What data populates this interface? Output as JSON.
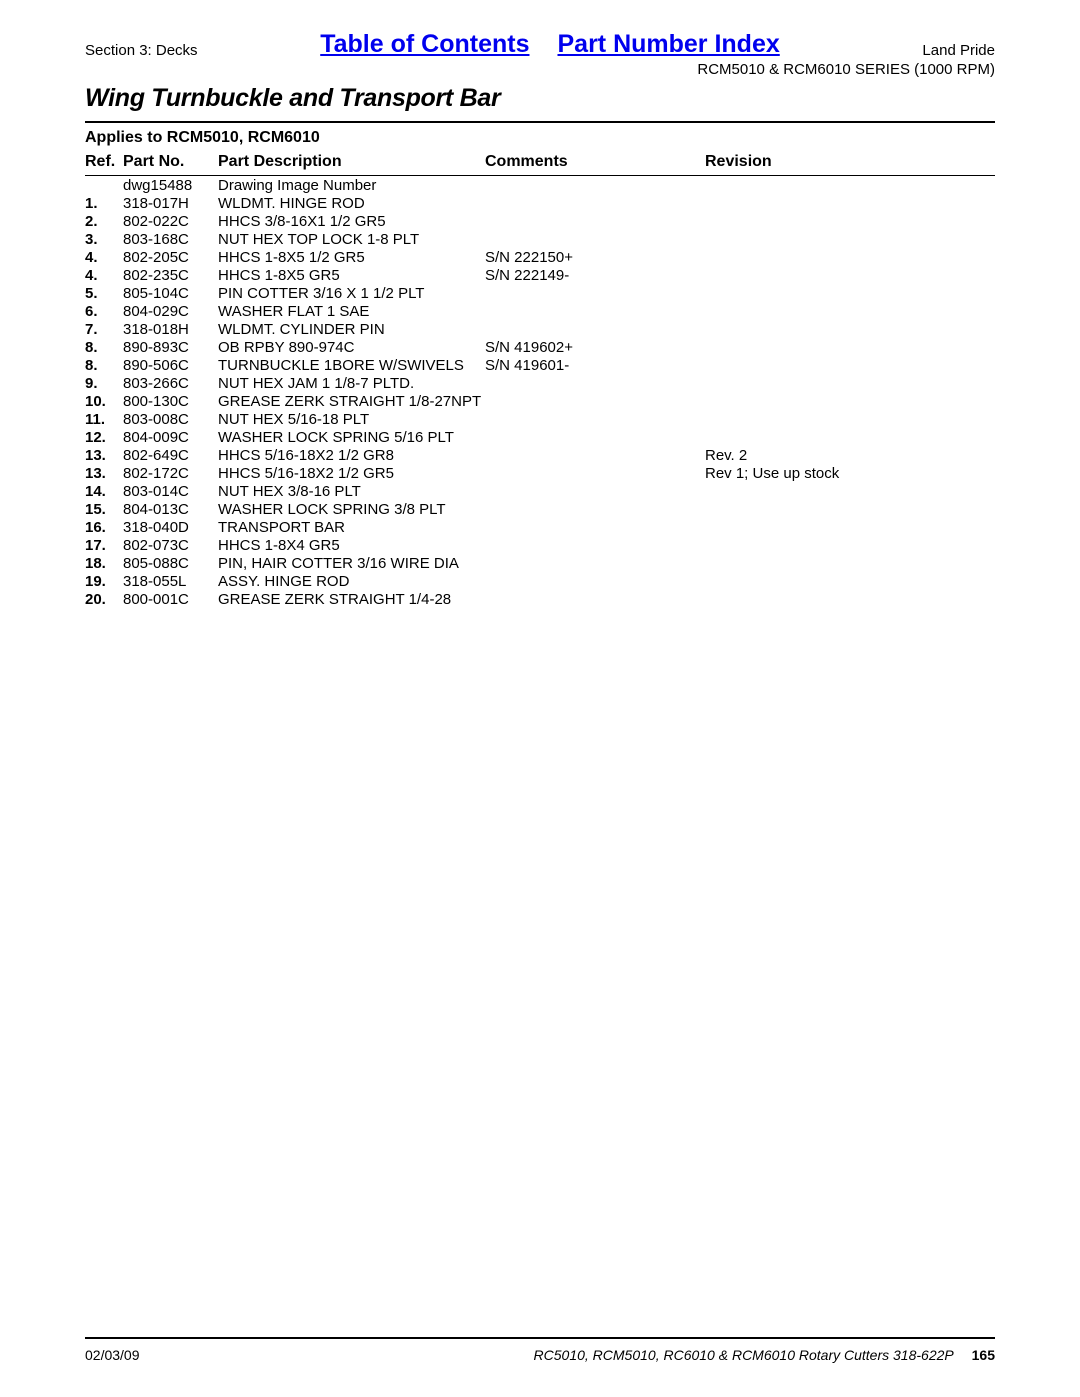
{
  "header": {
    "section_label": "Section 3: Decks",
    "brand": "Land Pride",
    "series": "RCM5010 & RCM6010 SERIES (1000 RPM)"
  },
  "toc_links": {
    "toc": "Table of Contents",
    "pni": "Part Number Index"
  },
  "title": "Wing Turnbuckle and Transport Bar",
  "applies_to": "Applies to RCM5010, RCM6010",
  "table": {
    "columns": {
      "ref": "Ref.",
      "part_no": "Part No.",
      "description": "Part Description",
      "comments": "Comments",
      "revision": "Revision"
    },
    "rows": [
      {
        "ref": "",
        "part": "dwg15488",
        "desc": "Drawing Image Number",
        "comments": "",
        "rev": ""
      },
      {
        "ref": "1.",
        "part": "318-017H",
        "desc": "WLDMT. HINGE ROD",
        "comments": "",
        "rev": ""
      },
      {
        "ref": "2.",
        "part": "802-022C",
        "desc": "HHCS 3/8-16X1 1/2 GR5",
        "comments": "",
        "rev": ""
      },
      {
        "ref": "3.",
        "part": "803-168C",
        "desc": "NUT HEX TOP LOCK 1-8 PLT",
        "comments": "",
        "rev": ""
      },
      {
        "ref": "4.",
        "part": "802-205C",
        "desc": "HHCS 1-8X5 1/2 GR5",
        "comments": "S/N 222150+",
        "rev": ""
      },
      {
        "ref": "4.",
        "part": "802-235C",
        "desc": "HHCS 1-8X5 GR5",
        "comments": "S/N 222149-",
        "rev": ""
      },
      {
        "ref": "5.",
        "part": "805-104C",
        "desc": "PIN COTTER 3/16 X 1 1/2 PLT",
        "comments": "",
        "rev": ""
      },
      {
        "ref": "6.",
        "part": "804-029C",
        "desc": "WASHER FLAT 1 SAE",
        "comments": "",
        "rev": ""
      },
      {
        "ref": "7.",
        "part": "318-018H",
        "desc": "WLDMT. CYLINDER PIN",
        "comments": "",
        "rev": ""
      },
      {
        "ref": "8.",
        "part": "890-893C",
        "desc": "OB RPBY 890-974C",
        "comments": "S/N 419602+",
        "rev": ""
      },
      {
        "ref": "8.",
        "part": "890-506C",
        "desc": "TURNBUCKLE 1BORE W/SWIVELS",
        "comments": "S/N 419601-",
        "rev": ""
      },
      {
        "ref": "9.",
        "part": "803-266C",
        "desc": "NUT HEX JAM 1 1/8-7 PLTD.",
        "comments": "",
        "rev": ""
      },
      {
        "ref": "10.",
        "part": "800-130C",
        "desc": "GREASE ZERK STRAIGHT 1/8-27NPT",
        "comments": "",
        "rev": ""
      },
      {
        "ref": "11.",
        "part": "803-008C",
        "desc": "NUT HEX 5/16-18 PLT",
        "comments": "",
        "rev": ""
      },
      {
        "ref": "12.",
        "part": "804-009C",
        "desc": "WASHER LOCK SPRING 5/16 PLT",
        "comments": "",
        "rev": ""
      },
      {
        "ref": "13.",
        "part": "802-649C",
        "desc": "HHCS 5/16-18X2 1/2 GR8",
        "comments": "",
        "rev": "Rev. 2"
      },
      {
        "ref": "13.",
        "part": "802-172C",
        "desc": "HHCS 5/16-18X2 1/2 GR5",
        "comments": "",
        "rev": "Rev 1; Use up stock"
      },
      {
        "ref": "14.",
        "part": "803-014C",
        "desc": "NUT HEX 3/8-16 PLT",
        "comments": "",
        "rev": ""
      },
      {
        "ref": "15.",
        "part": "804-013C",
        "desc": "WASHER LOCK SPRING 3/8 PLT",
        "comments": "",
        "rev": ""
      },
      {
        "ref": "16.",
        "part": "318-040D",
        "desc": "TRANSPORT BAR",
        "comments": "",
        "rev": ""
      },
      {
        "ref": "17.",
        "part": "802-073C",
        "desc": "HHCS 1-8X4 GR5",
        "comments": "",
        "rev": ""
      },
      {
        "ref": "18.",
        "part": "805-088C",
        "desc": "PIN, HAIR COTTER 3/16 WIRE DIA",
        "comments": "",
        "rev": ""
      },
      {
        "ref": "19.",
        "part": "318-055L",
        "desc": "ASSY. HINGE ROD",
        "comments": "",
        "rev": ""
      },
      {
        "ref": "20.",
        "part": "800-001C",
        "desc": "GREASE ZERK STRAIGHT 1/4-28",
        "comments": "",
        "rev": ""
      }
    ]
  },
  "footer": {
    "date": "02/03/09",
    "manual_title": "RC5010, RCM5010, RC6010 & RCM6010 Rotary Cutters 318-622P",
    "page_number": "165"
  }
}
